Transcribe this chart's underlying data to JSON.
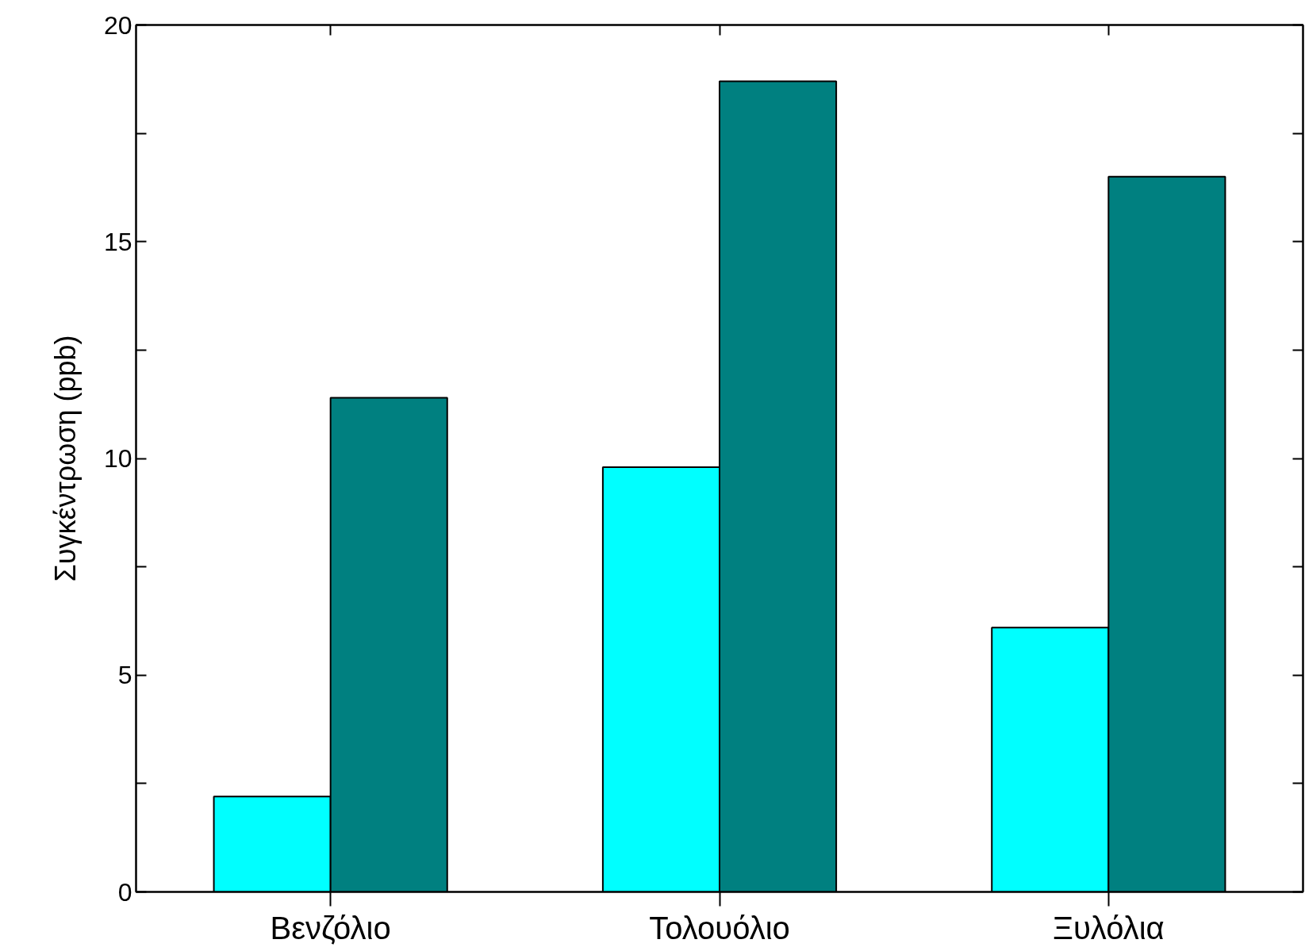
{
  "chart_data": {
    "type": "bar",
    "ylabel": "Συγκέντρωση (ppb)",
    "categories": [
      "Βενζόλιο",
      "Τολουόλιο",
      "Ξυλόλια"
    ],
    "series": [
      {
        "color": "#00ffff",
        "values": [
          2.2,
          9.8,
          6.1
        ]
      },
      {
        "color": "#008080",
        "values": [
          11.4,
          18.7,
          16.5
        ]
      }
    ],
    "ylim": [
      0,
      20
    ],
    "yticks": [
      0,
      {
        "value": 2.5,
        "label": null
      },
      5,
      {
        "value": 7.5,
        "label": null
      },
      10,
      {
        "value": 12.5,
        "label": null
      },
      15,
      {
        "value": 17.5,
        "label": null
      },
      20
    ],
    "grid": false
  }
}
